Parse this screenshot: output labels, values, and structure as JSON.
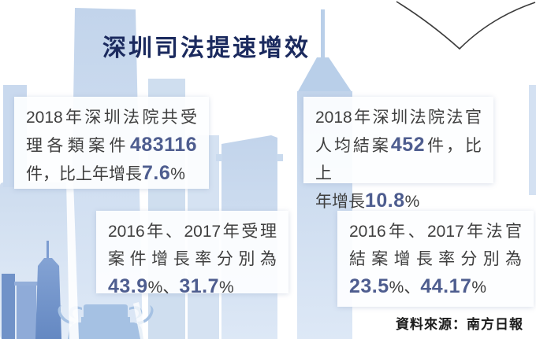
{
  "title": "深圳司法提速增效",
  "source": "資料來源：南方日報",
  "colors": {
    "title": "#1b2a5e",
    "number_accent": "#4e5d8f",
    "body_text": "#3f3f3f",
    "skyline_light": "#c3d5ec",
    "skyline_dark": "#7e9ed1",
    "vessel": "#a5c1e3"
  },
  "stat_boxes": [
    {
      "id": "cases-accepted-2018",
      "lines": [
        [
          {
            "t": "2018年深圳法院共受"
          }
        ],
        [
          {
            "t": "理各類案件"
          },
          {
            "t": "483116",
            "em": true
          }
        ],
        [
          {
            "t": "件，比上年增長"
          },
          {
            "t": "7.6",
            "em": true
          },
          {
            "t": "%"
          }
        ]
      ]
    },
    {
      "id": "cases-closed-per-judge-2018",
      "lines": [
        [
          {
            "t": "2018年深圳法院法官"
          }
        ],
        [
          {
            "t": "人均結案"
          },
          {
            "t": "452",
            "em": true
          },
          {
            "t": "件，比上"
          }
        ],
        [
          {
            "t": "年增長"
          },
          {
            "t": "10.8",
            "em": true
          },
          {
            "t": "%"
          }
        ]
      ]
    },
    {
      "id": "acceptance-growth-2016-2017",
      "lines": [
        [
          {
            "t": "2016年、2017年受理"
          }
        ],
        [
          {
            "t": "案件增長率分別為"
          }
        ],
        [
          {
            "t": "43.9",
            "em": true
          },
          {
            "t": "%、"
          },
          {
            "t": "31.7",
            "em": true
          },
          {
            "t": "%"
          }
        ]
      ]
    },
    {
      "id": "closing-growth-2016-2017",
      "lines": [
        [
          {
            "t": "2016年、2017年法官"
          }
        ],
        [
          {
            "t": "結案增長率分別為"
          }
        ],
        [
          {
            "t": "23.5",
            "em": true
          },
          {
            "t": "%、"
          },
          {
            "t": "44.17",
            "em": true
          },
          {
            "t": "%"
          }
        ]
      ]
    }
  ],
  "chart_data": {
    "type": "table",
    "title": "深圳司法提速增效",
    "series": [
      {
        "name": "2018年共受理各類案件(件)",
        "values": [
          483116
        ]
      },
      {
        "name": "2018年受理案件比上年增長(%)",
        "values": [
          7.6
        ]
      },
      {
        "name": "受理案件增長率(%)",
        "x": [
          "2016",
          "2017"
        ],
        "values": [
          43.9,
          31.7
        ]
      },
      {
        "name": "2018年法官人均結案(件)",
        "values": [
          452
        ]
      },
      {
        "name": "2018年法官人均結案比上年增長(%)",
        "values": [
          10.8
        ]
      },
      {
        "name": "法官結案增長率(%)",
        "x": [
          "2016",
          "2017"
        ],
        "values": [
          23.5,
          44.17
        ]
      }
    ],
    "source": "南方日報"
  }
}
